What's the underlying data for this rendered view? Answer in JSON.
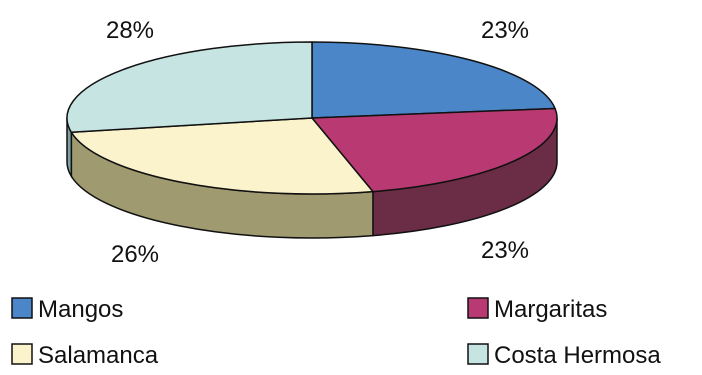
{
  "chart_data": {
    "type": "pie",
    "style": "3d",
    "slices": [
      {
        "label": "Mangos",
        "value": 23,
        "display": "23%",
        "color": "#4a86c8",
        "side_color": "#2f5a8c"
      },
      {
        "label": "Margaritas",
        "value": 23,
        "display": "23%",
        "color": "#b93a72",
        "side_color": "#6b2c45"
      },
      {
        "label": "Salamanca",
        "value": 26,
        "display": "26%",
        "color": "#fbf3cc",
        "side_color": "#a09a70"
      },
      {
        "label": "Costa Hermosa",
        "value": 28,
        "display": "28%",
        "color": "#c6e4e2",
        "side_color": "#7ea0a0"
      }
    ],
    "legend": {
      "placement": "bottom",
      "columns": 2
    },
    "outline_color": "#111111"
  }
}
